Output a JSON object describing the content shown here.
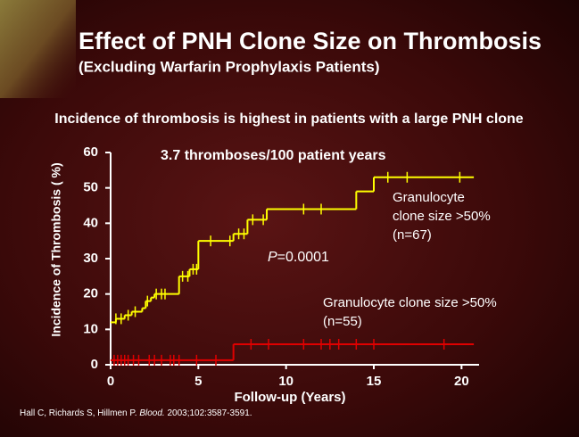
{
  "slide": {
    "title": "Effect of PNH Clone Size on Thrombosis",
    "subtitle": "(Excluding Warfarin Prophylaxis Patients)",
    "headline": "Incidence of thrombosis is highest in patients with a large PNH clone",
    "citation": {
      "before": "Hall C, Richards S, Hillmen P. ",
      "journal": "Blood.",
      "after": " 2003;102:3587-3591."
    }
  },
  "chart_data": {
    "type": "step",
    "x_label": "Follow-up (Years)",
    "y_label": "Incidence of Thrombosis ( %)",
    "annotation": "3.7 thromboses/100 patient years",
    "p_annotation": {
      "symbol": "P",
      "rest": "=0.0001"
    },
    "xlim": [
      0,
      21
    ],
    "xticks": [
      0,
      5,
      10,
      15,
      20
    ],
    "ylim": [
      0,
      60
    ],
    "yticks": [
      0,
      10,
      20,
      30,
      40,
      50,
      60
    ],
    "follow_up_end": 20.7,
    "series": [
      {
        "name": "Granulocyte clone size >50% (n=67)",
        "color": "#ffff00",
        "x": [
          0,
          0.3,
          0.8,
          1.2,
          1.8,
          2.0,
          2.3,
          2.5,
          3.9,
          4.5,
          5.0,
          7.0,
          7.8,
          8.9,
          14.0,
          15.0
        ],
        "values": [
          12,
          13,
          14,
          15,
          16,
          18,
          19,
          20,
          25,
          27,
          35,
          37,
          41,
          44,
          49,
          53
        ],
        "censored_x": [
          0.3,
          0.6,
          1.0,
          1.4,
          2.1,
          2.6,
          2.9,
          3.1,
          4.1,
          4.4,
          4.7,
          4.9,
          5.7,
          6.8,
          7.3,
          7.6,
          8.1,
          8.7,
          11.0,
          12.0,
          15.8,
          16.9,
          19.9
        ]
      },
      {
        "name": "Granulocyte clone size >50% (n=55)",
        "color": "#e00000",
        "x": [
          0,
          7.0
        ],
        "values": [
          1.3,
          5.8
        ],
        "censored_x": [
          0.2,
          0.4,
          0.6,
          0.8,
          1.0,
          1.3,
          1.6,
          2.2,
          2.5,
          2.9,
          3.4,
          3.6,
          3.9,
          4.9,
          6.0,
          8.0,
          9.0,
          11.0,
          12.0,
          12.5,
          13.0,
          14.0,
          15.0,
          19.0
        ]
      }
    ]
  }
}
